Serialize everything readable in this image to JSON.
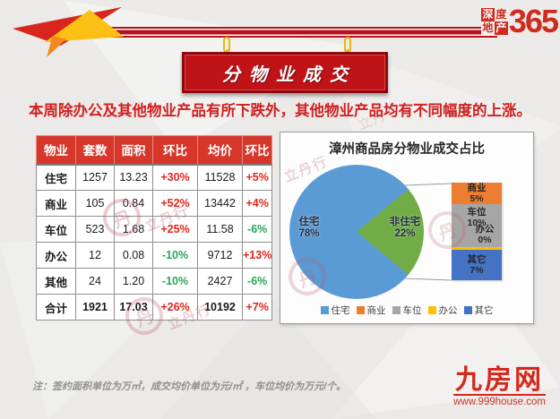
{
  "page": {
    "headline": "本周除办公及其他物业产品有所下跌外，其他物业产品均有不同幅度的上涨。",
    "note": "注：签约面积单位为万㎡，成交均价单位为元/㎡ ，车位均价为万元/个。"
  },
  "header": {
    "banner_title": "分物业成交",
    "logo": {
      "box_chars": [
        "深",
        "度",
        "地",
        "产"
      ],
      "number": "365"
    }
  },
  "site": {
    "name": "九房网",
    "url": "www.999house.com"
  },
  "watermark": {
    "text": "立丹行",
    "symbol": "丹"
  },
  "table": {
    "headers": [
      "物业",
      "套数",
      "面积",
      "环比",
      "均价",
      "环比"
    ],
    "pct_columns": [
      3,
      5
    ],
    "rows": [
      {
        "cells": [
          "住宅",
          "1257",
          "13.23",
          "+30%",
          "11528",
          "+5%"
        ]
      },
      {
        "cells": [
          "商业",
          "105",
          "0.84",
          "+52%",
          "13442",
          "+4%"
        ]
      },
      {
        "cells": [
          "车位",
          "523",
          "1.68",
          "+25%",
          "11.58",
          "-6%"
        ]
      },
      {
        "cells": [
          "办公",
          "12",
          "0.08",
          "-10%",
          "9712",
          "+13%"
        ]
      },
      {
        "cells": [
          "其他",
          "24",
          "1.20",
          "-10%",
          "2427",
          "-6%"
        ]
      },
      {
        "cells": [
          "合计",
          "1921",
          "17.03",
          "+26%",
          "10192",
          "+7%"
        ],
        "total": true
      }
    ],
    "up_color": "#e2241b",
    "down_color": "#2aa45e"
  },
  "chart_data": {
    "type": "pie",
    "title": "漳州商品房分物业成交占比",
    "slices": [
      {
        "label": "住宅",
        "value": 78,
        "pct": "78%",
        "color": "#5b9bd5"
      },
      {
        "label": "非住宅",
        "value": 22,
        "pct": "22%",
        "color": "#70ad47"
      }
    ],
    "breakdown_bar": [
      {
        "label": "商业",
        "value": 5,
        "pct": "5%",
        "color": "#ed7d31"
      },
      {
        "label": "车位",
        "value": 10,
        "pct": "10%",
        "color": "#a6a6a6"
      },
      {
        "label": "办公",
        "value": 0,
        "pct": "0%",
        "color": "#ffc000",
        "label_in_prev": true
      },
      {
        "label": "其它",
        "value": 7,
        "pct": "7%",
        "color": "#4472c4"
      }
    ],
    "legend": [
      {
        "label": "住宅",
        "color": "#5b9bd5"
      },
      {
        "label": "商业",
        "color": "#ed7d31"
      },
      {
        "label": "车位",
        "color": "#a6a6a6"
      },
      {
        "label": "办公",
        "color": "#ffc000"
      },
      {
        "label": "其它",
        "color": "#4472c4"
      }
    ],
    "legend_position": "bottom",
    "grid": false
  }
}
